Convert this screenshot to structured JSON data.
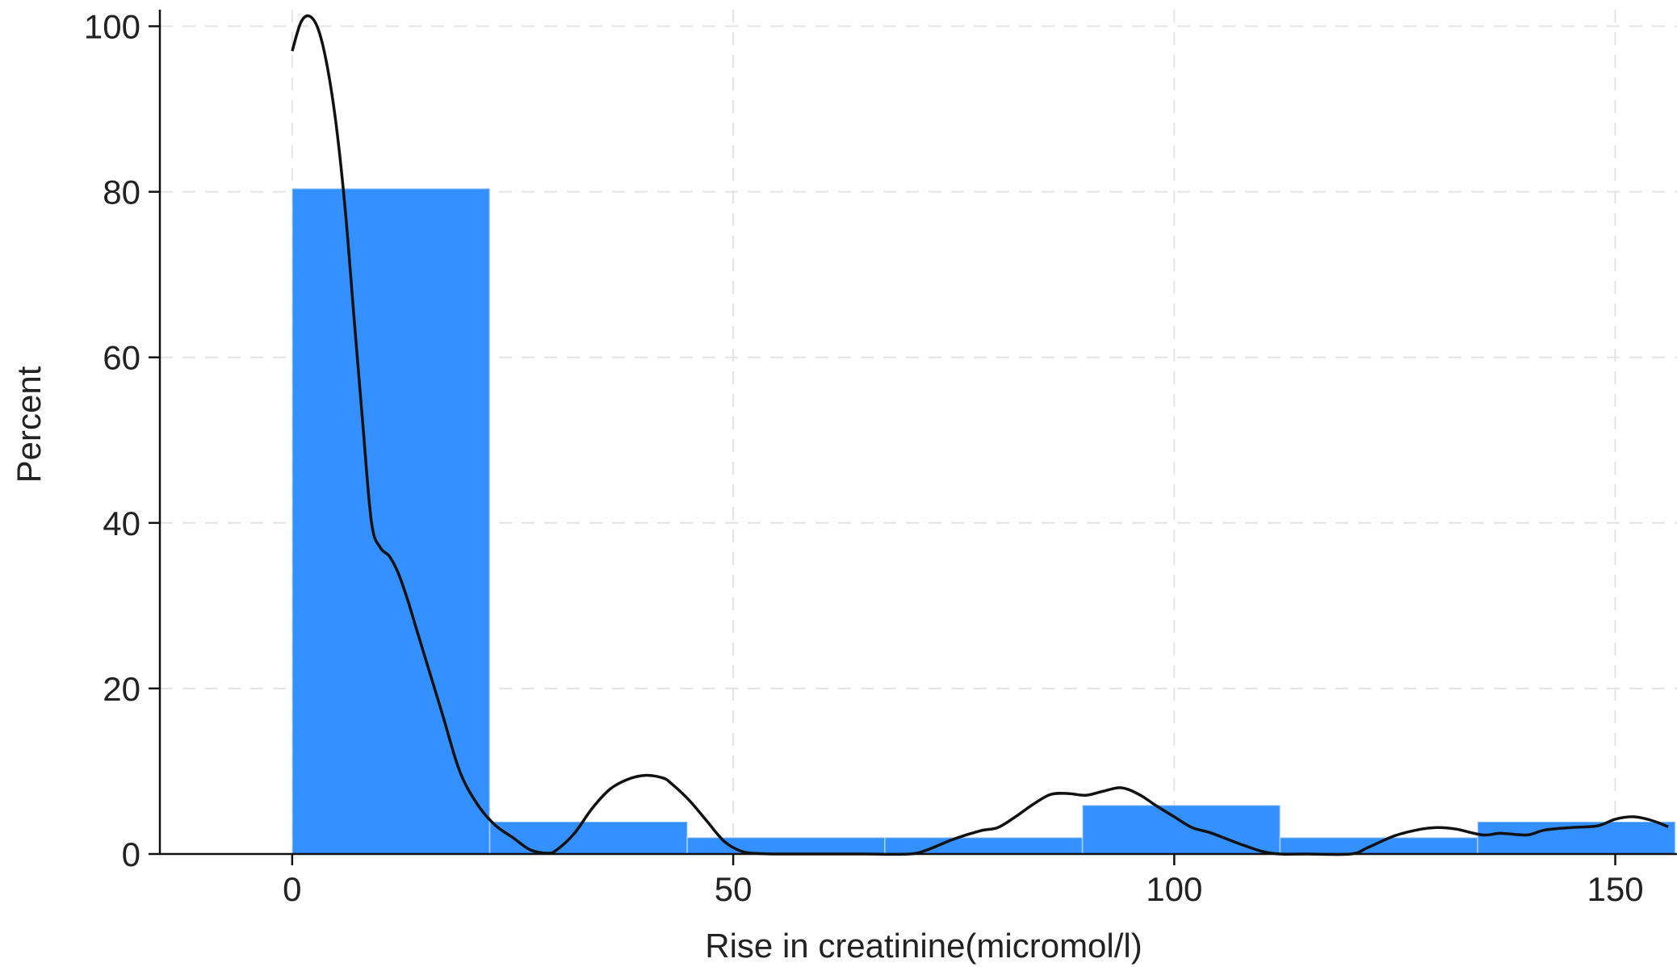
{
  "chart_data": {
    "type": "bar",
    "title": "",
    "xlabel": "Rise in creatinine(micromol/l)",
    "ylabel": "Percent",
    "xlim": [
      -15,
      157
    ],
    "ylim": [
      0,
      102
    ],
    "xticks": [
      0,
      50,
      100,
      150
    ],
    "yticks": [
      0,
      20,
      40,
      60,
      80,
      100
    ],
    "grid": true,
    "bar_color": "#3590FF",
    "curve_color": "#111111",
    "bins": [
      {
        "x0": 0,
        "x1": 22.4,
        "value": 80.4
      },
      {
        "x0": 22.4,
        "x1": 44.8,
        "value": 3.9
      },
      {
        "x0": 44.8,
        "x1": 67.2,
        "value": 2.0
      },
      {
        "x0": 67.2,
        "x1": 89.6,
        "value": 2.0
      },
      {
        "x0": 89.6,
        "x1": 112.0,
        "value": 5.9
      },
      {
        "x0": 112.0,
        "x1": 134.4,
        "value": 2.0
      },
      {
        "x0": 134.4,
        "x1": 156.8,
        "value": 3.9
      }
    ],
    "density_curve": {
      "x": [
        0,
        1,
        2,
        3,
        4,
        5,
        6,
        7,
        8,
        9,
        10,
        11,
        12,
        13,
        14,
        15,
        17,
        19,
        21,
        23,
        25,
        27,
        29,
        30,
        32,
        34,
        36,
        38,
        40,
        42,
        43,
        45,
        47,
        49,
        51,
        53,
        55,
        57,
        60,
        65,
        70,
        72,
        75,
        78,
        80,
        82,
        84,
        86,
        88,
        90,
        92,
        94,
        96,
        98,
        100,
        102,
        104,
        106,
        108,
        110,
        112,
        115,
        120,
        122,
        125,
        128,
        130,
        132,
        135,
        137,
        140,
        142,
        145,
        148,
        150,
        152,
        154,
        156
      ],
      "y": [
        97,
        100.5,
        101.2,
        99.5,
        95,
        88,
        78,
        65,
        52,
        40,
        37,
        36,
        34,
        31,
        27.5,
        24,
        17,
        10,
        6,
        3.5,
        2,
        0.5,
        0.1,
        0.5,
        2.5,
        5.5,
        7.8,
        9,
        9.5,
        9.2,
        8.5,
        6.5,
        4,
        1.5,
        0.3,
        0.05,
        0,
        0,
        0,
        0,
        0,
        0.5,
        1.8,
        2.8,
        3.2,
        4.5,
        6,
        7.2,
        7.3,
        7.1,
        7.6,
        8,
        7.2,
        5.8,
        4.5,
        3.2,
        2.6,
        1.8,
        1,
        0.3,
        0,
        0,
        0,
        0.8,
        2.2,
        3,
        3.2,
        3,
        2.3,
        2.5,
        2.3,
        2.9,
        3.2,
        3.4,
        4.2,
        4.5,
        4.1,
        3.3
      ]
    }
  }
}
